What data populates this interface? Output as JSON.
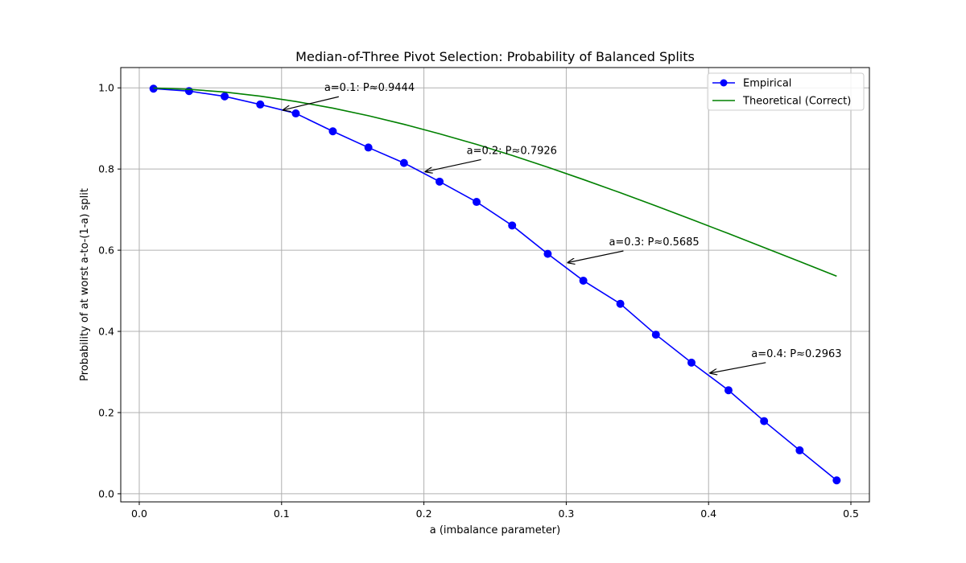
{
  "chart_data": {
    "type": "line",
    "title": "Median-of-Three Pivot Selection: Probability of Balanced Splits",
    "xlabel": "a (imbalance parameter)",
    "ylabel": "Probability of at worst a-to-(1-a) split",
    "xlim": [
      -0.013,
      0.513
    ],
    "ylim": [
      -0.02,
      1.05
    ],
    "xticks": [
      0.0,
      0.1,
      0.2,
      0.3,
      0.4,
      0.5
    ],
    "xtick_labels": [
      "0.0",
      "0.1",
      "0.2",
      "0.3",
      "0.4",
      "0.5"
    ],
    "yticks": [
      0.0,
      0.2,
      0.4,
      0.6,
      0.8,
      1.0
    ],
    "ytick_labels": [
      "0.0",
      "0.2",
      "0.4",
      "0.6",
      "0.8",
      "1.0"
    ],
    "grid": true,
    "legend_position": "top-right",
    "series": [
      {
        "name": "Empirical",
        "color": "#0000ff",
        "marker": "circle",
        "x": [
          0.01,
          0.035,
          0.06,
          0.085,
          0.11,
          0.136,
          0.161,
          0.186,
          0.211,
          0.237,
          0.262,
          0.287,
          0.312,
          0.338,
          0.363,
          0.388,
          0.414,
          0.439,
          0.464,
          0.49
        ],
        "y": [
          0.998,
          0.992,
          0.979,
          0.959,
          0.937,
          0.893,
          0.853,
          0.815,
          0.769,
          0.719,
          0.661,
          0.591,
          0.525,
          0.468,
          0.392,
          0.323,
          0.255,
          0.179,
          0.107,
          0.033
        ]
      },
      {
        "name": "Theoretical (Correct)",
        "color": "#008000",
        "marker": "none",
        "x": [
          0.01,
          0.035,
          0.06,
          0.085,
          0.11,
          0.136,
          0.161,
          0.186,
          0.211,
          0.237,
          0.262,
          0.287,
          0.312,
          0.338,
          0.363,
          0.388,
          0.414,
          0.439,
          0.464,
          0.49
        ],
        "y": [
          0.9997,
          0.9964,
          0.9896,
          0.9795,
          0.9664,
          0.9501,
          0.9314,
          0.9102,
          0.8868,
          0.8608,
          0.8335,
          0.8046,
          0.7742,
          0.7416,
          0.7092,
          0.6759,
          0.641,
          0.6066,
          0.5721,
          0.536
        ]
      }
    ],
    "annotations": [
      {
        "text": "a=0.1: P≈0.9444",
        "x": 0.1,
        "y": 0.9444,
        "text_x": 0.13,
        "text_y": 1.0
      },
      {
        "text": "a=0.2: P≈0.7926",
        "x": 0.2,
        "y": 0.7926,
        "text_x": 0.23,
        "text_y": 0.845
      },
      {
        "text": "a=0.3: P≈0.5685",
        "x": 0.3,
        "y": 0.5685,
        "text_x": 0.33,
        "text_y": 0.62
      },
      {
        "text": "a=0.4: P≈0.2963",
        "x": 0.4,
        "y": 0.2963,
        "text_x": 0.43,
        "text_y": 0.345
      }
    ]
  }
}
